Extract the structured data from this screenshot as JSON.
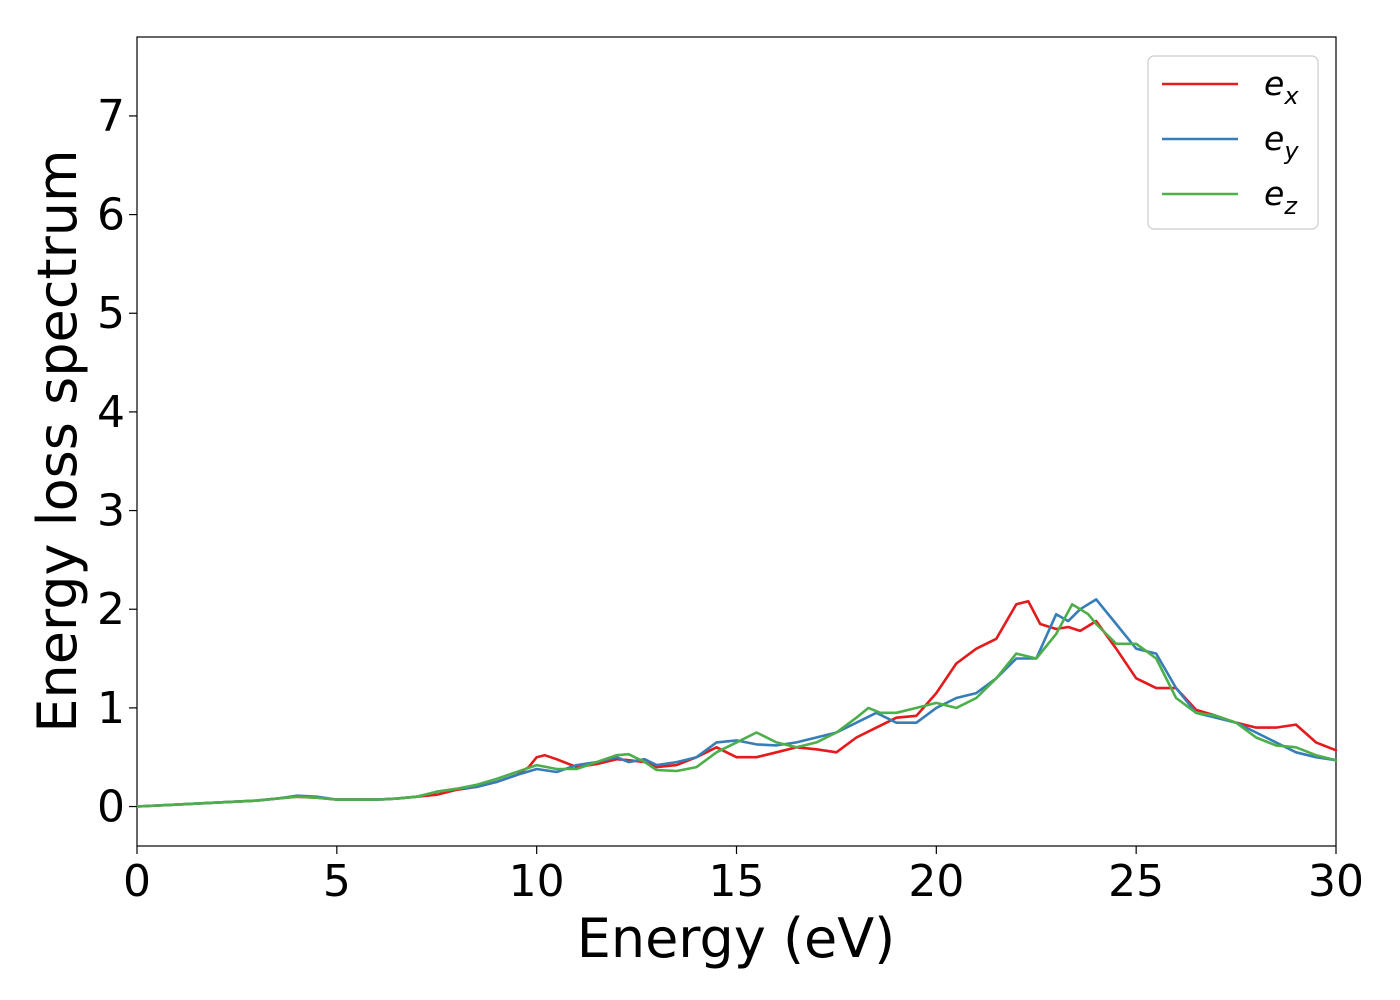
{
  "chart_data": {
    "type": "line",
    "title": "",
    "xlabel": "Energy (eV)",
    "ylabel": "Energy loss spectrum",
    "xlim": [
      0,
      30
    ],
    "ylim": [
      -0.4,
      7.8
    ],
    "xticks": [
      0,
      5,
      10,
      15,
      20,
      25,
      30
    ],
    "yticks": [
      0,
      1,
      2,
      3,
      4,
      5,
      6,
      7
    ],
    "grid": false,
    "legend": {
      "placement": "top-right",
      "entries": [
        {
          "base": "e",
          "sub": "x"
        },
        {
          "base": "e",
          "sub": "y"
        },
        {
          "base": "e",
          "sub": "z"
        }
      ]
    },
    "series": [
      {
        "name": "e_x",
        "color": "#e41a1c",
        "x": [
          0,
          1,
          2,
          3,
          3.5,
          4,
          4.5,
          5,
          6,
          6.5,
          7,
          7.5,
          8,
          8.5,
          9,
          9.5,
          9.8,
          10,
          10.2,
          10.5,
          11,
          11.5,
          12,
          12.3,
          12.7,
          13,
          13.5,
          14,
          14.5,
          15,
          15.5,
          16,
          16.5,
          17,
          17.5,
          18,
          18.5,
          19,
          19.5,
          20,
          20.5,
          21,
          21.5,
          22,
          22.3,
          22.6,
          23,
          23.3,
          23.6,
          24,
          24.5,
          25,
          25.5,
          26,
          26.5,
          27,
          27.5,
          28,
          28.5,
          29,
          29.5,
          30
        ],
        "y": [
          0.0,
          0.02,
          0.04,
          0.06,
          0.08,
          0.1,
          0.09,
          0.07,
          0.07,
          0.08,
          0.1,
          0.12,
          0.17,
          0.2,
          0.25,
          0.32,
          0.4,
          0.5,
          0.52,
          0.48,
          0.4,
          0.43,
          0.48,
          0.47,
          0.45,
          0.4,
          0.42,
          0.5,
          0.6,
          0.5,
          0.5,
          0.55,
          0.6,
          0.58,
          0.55,
          0.7,
          0.8,
          0.9,
          0.92,
          1.15,
          1.45,
          1.6,
          1.7,
          2.05,
          2.08,
          1.85,
          1.8,
          1.82,
          1.78,
          1.88,
          1.6,
          1.3,
          1.2,
          1.2,
          0.98,
          0.92,
          0.85,
          0.8,
          0.8,
          0.83,
          0.65,
          0.57
        ]
      },
      {
        "name": "e_y",
        "color": "#377eb8",
        "x": [
          0,
          1,
          2,
          3,
          3.5,
          4,
          4.5,
          5,
          6,
          6.5,
          7,
          7.5,
          8,
          8.5,
          9,
          9.5,
          10,
          10.5,
          11,
          11.5,
          12,
          12.3,
          12.7,
          13,
          13.5,
          14,
          14.5,
          15,
          15.5,
          16,
          16.5,
          17,
          17.5,
          18,
          18.5,
          19,
          19.5,
          20,
          20.5,
          21,
          21.5,
          22,
          22.5,
          23,
          23.3,
          23.6,
          24,
          24.5,
          25,
          25.5,
          26,
          26.5,
          27,
          27.5,
          28,
          28.5,
          29,
          29.5,
          30
        ],
        "y": [
          0.0,
          0.02,
          0.04,
          0.06,
          0.08,
          0.11,
          0.1,
          0.07,
          0.07,
          0.08,
          0.1,
          0.15,
          0.18,
          0.2,
          0.25,
          0.32,
          0.38,
          0.35,
          0.42,
          0.45,
          0.5,
          0.45,
          0.48,
          0.42,
          0.45,
          0.5,
          0.65,
          0.67,
          0.63,
          0.62,
          0.65,
          0.7,
          0.75,
          0.85,
          0.95,
          0.85,
          0.85,
          1.0,
          1.1,
          1.15,
          1.3,
          1.5,
          1.5,
          1.95,
          1.88,
          2.0,
          2.1,
          1.85,
          1.6,
          1.55,
          1.2,
          0.95,
          0.9,
          0.85,
          0.75,
          0.65,
          0.55,
          0.5,
          0.47
        ]
      },
      {
        "name": "e_z",
        "color": "#4daf4a",
        "x": [
          0,
          1,
          2,
          3,
          3.5,
          4,
          4.5,
          5,
          6,
          6.5,
          7,
          7.5,
          8,
          8.5,
          9,
          9.5,
          10,
          10.5,
          11,
          11.5,
          12,
          12.3,
          12.7,
          13,
          13.5,
          14,
          14.5,
          15,
          15.5,
          16,
          16.5,
          17,
          17.5,
          18,
          18.3,
          18.6,
          19,
          19.5,
          20,
          20.5,
          21,
          21.5,
          22,
          22.5,
          23,
          23.4,
          23.8,
          24,
          24.5,
          25,
          25.5,
          26,
          26.5,
          27,
          27.5,
          28,
          28.5,
          29,
          29.5,
          30
        ],
        "y": [
          0.0,
          0.02,
          0.04,
          0.06,
          0.08,
          0.1,
          0.09,
          0.07,
          0.07,
          0.08,
          0.1,
          0.15,
          0.18,
          0.22,
          0.28,
          0.35,
          0.42,
          0.38,
          0.38,
          0.45,
          0.52,
          0.53,
          0.45,
          0.37,
          0.36,
          0.4,
          0.55,
          0.65,
          0.75,
          0.65,
          0.6,
          0.65,
          0.75,
          0.9,
          1.0,
          0.95,
          0.95,
          1.0,
          1.05,
          1.0,
          1.1,
          1.3,
          1.55,
          1.5,
          1.75,
          2.05,
          1.95,
          1.85,
          1.65,
          1.65,
          1.5,
          1.1,
          0.95,
          0.92,
          0.85,
          0.7,
          0.62,
          0.6,
          0.52,
          0.47
        ]
      }
    ]
  }
}
